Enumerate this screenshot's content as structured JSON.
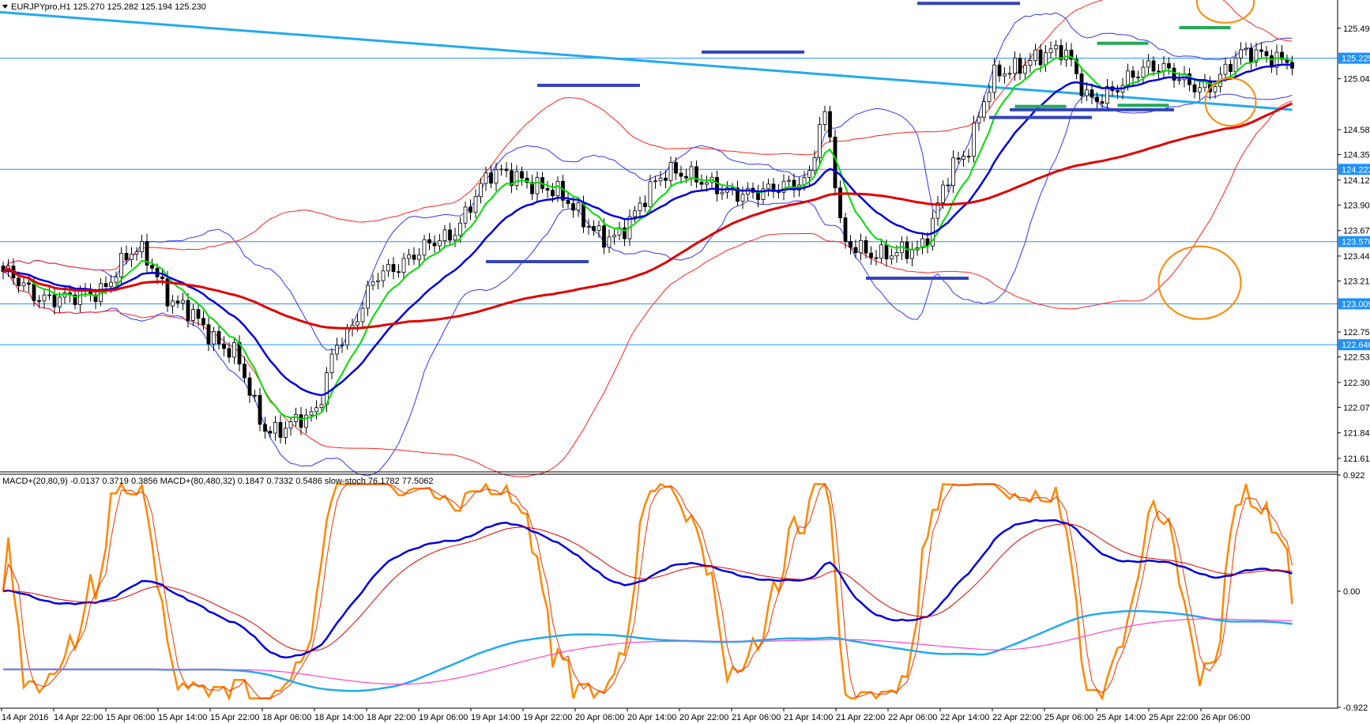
{
  "chart_data": {
    "type": "candlestick",
    "symbol_header": "EURJPYpro,H1  125.270 125.282 125.194 125.230",
    "price_axis": {
      "range": [
        121.5,
        125.75
      ],
      "ticks": [
        "125.495",
        "125.040",
        "124.580",
        "124.355",
        "124.125",
        "123.900",
        "123.670",
        "123.440",
        "123.215",
        "122.755",
        "122.530",
        "122.300",
        "122.075",
        "121.845",
        "121.615"
      ]
    },
    "current_price_tag": "125.225",
    "horizontal_levels": [
      "125.225",
      "124.222",
      "123.570",
      "123.009",
      "122.640"
    ],
    "time_axis": [
      "14 Apr 2016",
      "14 Apr 22:00",
      "15 Apr 06:00",
      "15 Apr 14:00",
      "15 Apr 22:00",
      "18 Apr 06:00",
      "18 Apr 14:00",
      "18 Apr 22:00",
      "19 Apr 06:00",
      "19 Apr 14:00",
      "19 Apr 22:00",
      "20 Apr 06:00",
      "20 Apr 14:00",
      "20 Apr 22:00",
      "21 Apr 06:00",
      "21 Apr 14:00",
      "21 Apr 22:00",
      "22 Apr 06:00",
      "22 Apr 14:00",
      "22 Apr 22:00",
      "25 Apr 06:00",
      "25 Apr 14:00",
      "25 Apr 22:00",
      "26 Apr 06:00"
    ],
    "price_path_keypoints": [
      [
        0,
        123.3
      ],
      [
        8,
        123.05
      ],
      [
        18,
        123.1
      ],
      [
        26,
        123.5
      ],
      [
        34,
        123.0
      ],
      [
        44,
        122.6
      ],
      [
        52,
        121.85
      ],
      [
        60,
        122.0
      ],
      [
        66,
        122.7
      ],
      [
        74,
        123.3
      ],
      [
        86,
        123.6
      ],
      [
        96,
        124.2
      ],
      [
        106,
        124.05
      ],
      [
        118,
        123.6
      ],
      [
        130,
        124.2
      ],
      [
        144,
        124.0
      ],
      [
        156,
        124.1
      ],
      [
        160,
        124.7
      ],
      [
        164,
        123.55
      ],
      [
        170,
        123.45
      ],
      [
        178,
        123.5
      ],
      [
        186,
        124.3
      ],
      [
        194,
        125.1
      ],
      [
        206,
        125.3
      ],
      [
        212,
        124.85
      ],
      [
        224,
        125.15
      ],
      [
        234,
        124.95
      ],
      [
        242,
        125.28
      ],
      [
        250,
        125.2
      ]
    ],
    "indicators": {
      "header": "MACD+(20,80,9) -0.0137 0.3719 0.3856   MACD+(80,480,32) 0.1847 0.7332 0.5486   slow-stoch 76.1782 77.5062",
      "macd_20_80_9": {
        "value": -0.0137,
        "signal": 0.3719,
        "histogram": 0.3856
      },
      "macd_80_480_32": {
        "value": 0.1847,
        "signal": 0.7332,
        "histogram": 0.5486
      },
      "slow_stoch": {
        "k": 76.1782,
        "d": 77.5062
      },
      "axis_ticks": [
        "0.922",
        "0.00",
        "-0.922"
      ]
    },
    "colors": {
      "bull_candle": "#ffffff",
      "bear_candle": "#000000",
      "ema_fast": "#00dd00",
      "ema_mid": "#0000dd",
      "sma_slow": "#e00000",
      "trendline": "#22aaee",
      "levels": "#1e90ff",
      "bands": "#3333ff",
      "bands_outer": "#ff2222",
      "support_resistance_marks": "#3344bb",
      "consolidation_marks": "#22aa55",
      "annotation_circles": "#ff8800",
      "stoch": "#ff8800",
      "macd_slow_sig": "#ff44cc"
    }
  }
}
